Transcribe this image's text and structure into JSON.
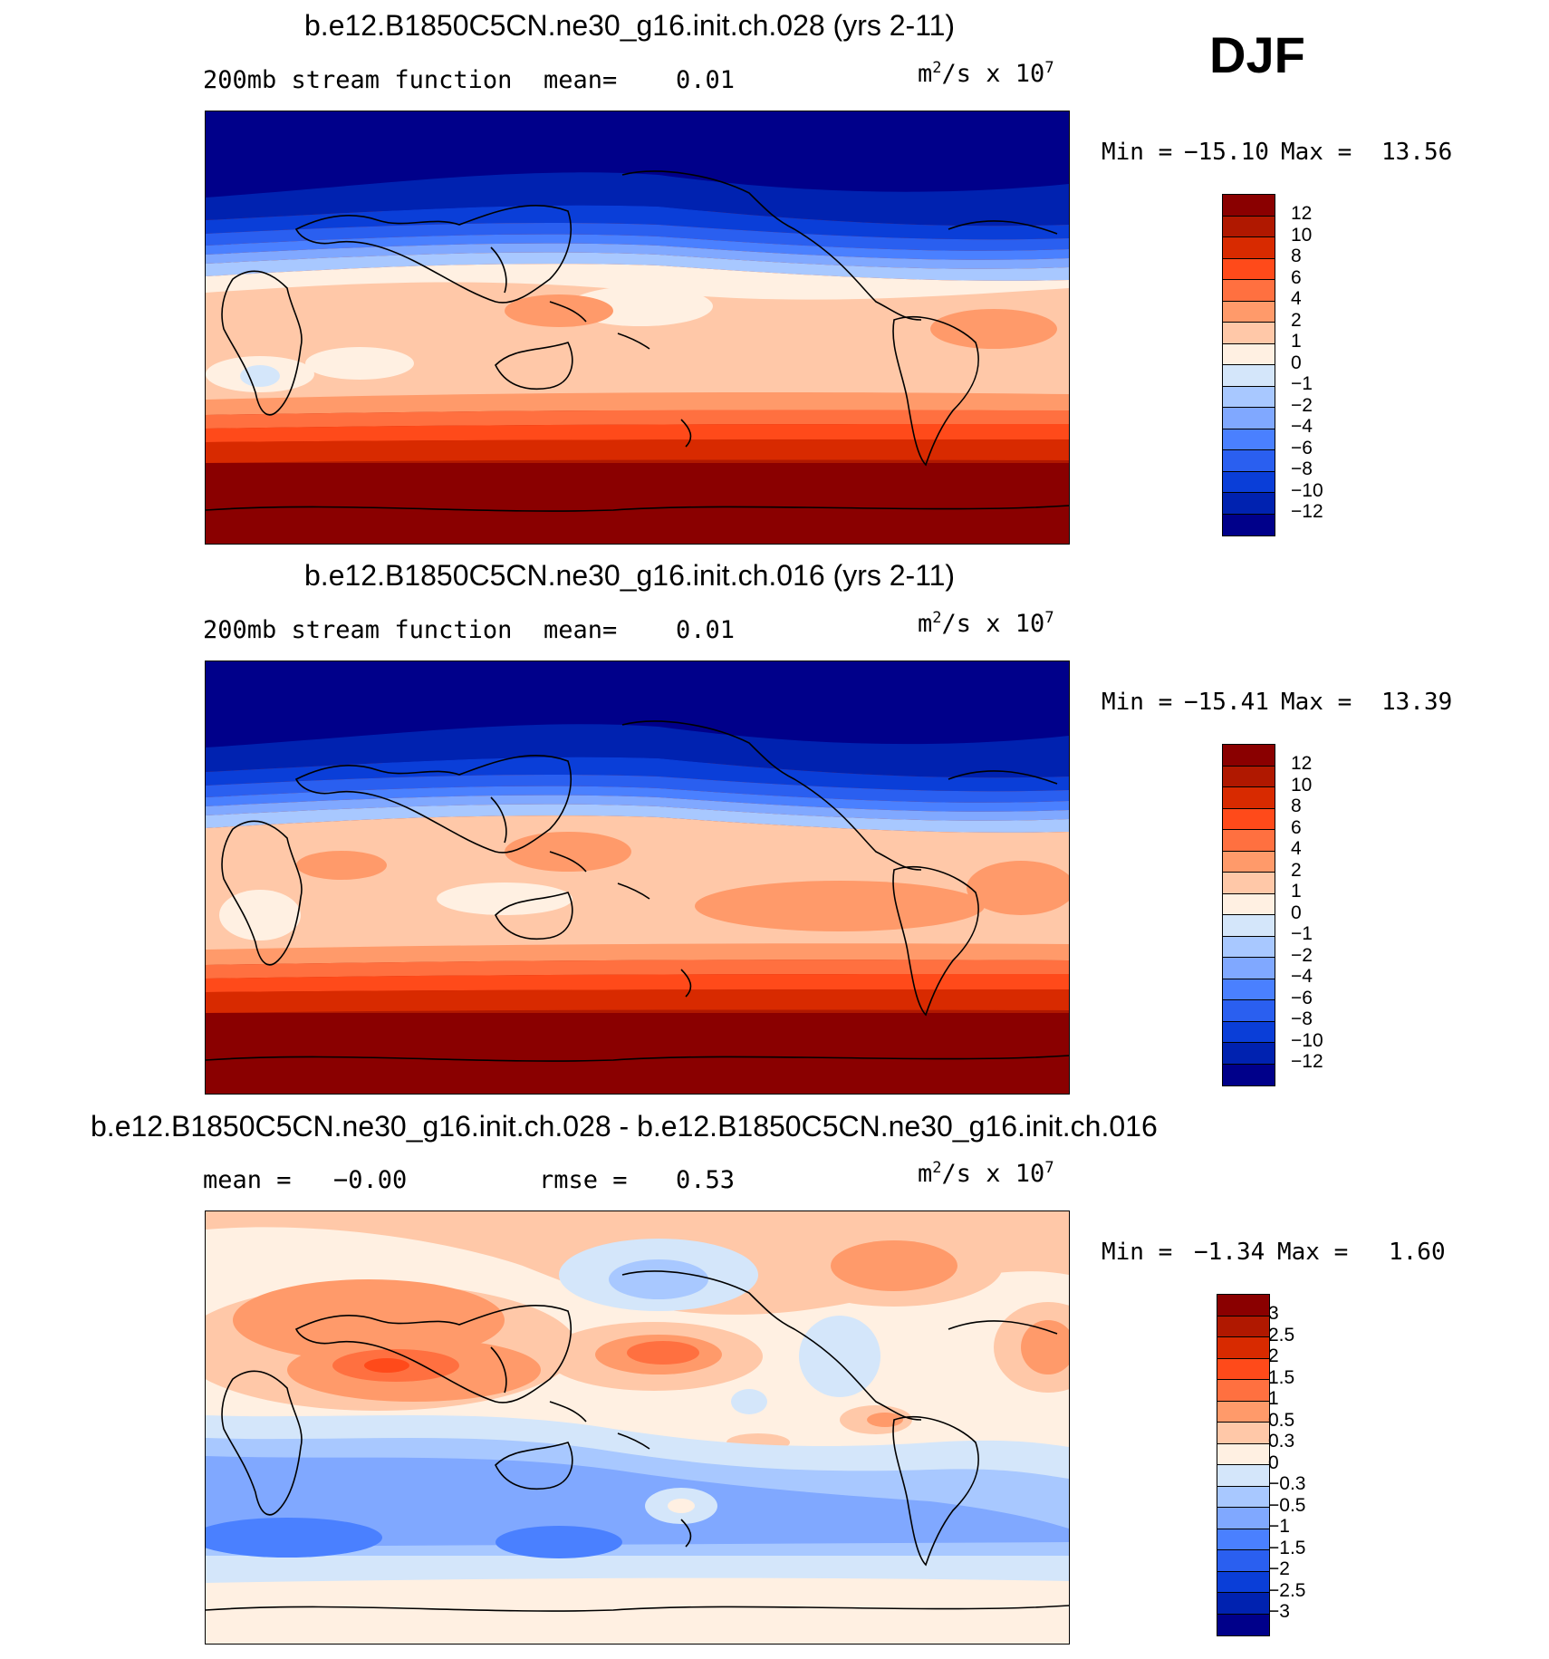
{
  "season": "DJF",
  "colors": {
    "stream": [
      "#00008a",
      "#0022b0",
      "#0a3ed8",
      "#2a5ff0",
      "#4a80ff",
      "#80a8ff",
      "#a8c8ff",
      "#d4e6fa",
      "#fff0e2",
      "#ffc8a8",
      "#ff9a6a",
      "#ff7040",
      "#ff4a1a",
      "#d82a00",
      "#b01800",
      "#8a0000"
    ],
    "diff": [
      "#00008a",
      "#0022b0",
      "#0a3ed8",
      "#2a5ff0",
      "#4a80ff",
      "#80a8ff",
      "#a8c8ff",
      "#d4e6fa",
      "#fff0e2",
      "#ffc8a8",
      "#ff9a6a",
      "#ff7040",
      "#ff4a1a",
      "#d82a00",
      "#b01800",
      "#8a0000"
    ]
  },
  "panels": [
    {
      "title": "b.e12.B1850C5CN.ne30_g16.init.ch.028 (yrs 2-11)",
      "left_label": "200mb stream function",
      "mid_label": "mean=",
      "mid_value": "0.01",
      "units_base": "m",
      "units_exp1": "2",
      "units_mid": "/s x 10",
      "units_exp2": "7",
      "min_label": "Min =",
      "min_value": "−15.10",
      "max_label": "Max =",
      "max_value": "13.56",
      "colorbar_labels": [
        "12",
        "10",
        "8",
        "6",
        "4",
        "2",
        "1",
        "0",
        "−1",
        "−2",
        "−4",
        "−6",
        "−8",
        "−10",
        "−12"
      ]
    },
    {
      "title": "b.e12.B1850C5CN.ne30_g16.init.ch.016 (yrs 2-11)",
      "left_label": "200mb stream function",
      "mid_label": "mean=",
      "mid_value": "0.01",
      "units_base": "m",
      "units_exp1": "2",
      "units_mid": "/s x 10",
      "units_exp2": "7",
      "min_label": "Min =",
      "min_value": "−15.41",
      "max_label": "Max =",
      "max_value": "13.39",
      "colorbar_labels": [
        "12",
        "10",
        "8",
        "6",
        "4",
        "2",
        "1",
        "0",
        "−1",
        "−2",
        "−4",
        "−6",
        "−8",
        "−10",
        "−12"
      ]
    },
    {
      "title": "b.e12.B1850C5CN.ne30_g16.init.ch.028 - b.e12.B1850C5CN.ne30_g16.init.ch.016",
      "left_label": "mean =",
      "left_value": "−0.00",
      "mid_label": "rmse =",
      "mid_value": "0.53",
      "units_base": "m",
      "units_exp1": "2",
      "units_mid": "/s x 10",
      "units_exp2": "7",
      "min_label": "Min =",
      "min_value": "−1.34",
      "max_label": "Max =",
      "max_value": "1.60",
      "colorbar_labels": [
        "3",
        "2.5",
        "2",
        "1.5",
        "1",
        "0.5",
        "0.3",
        "0",
        "−0.3",
        "−0.5",
        "−1",
        "−1.5",
        "−2",
        "−2.5",
        "−3"
      ]
    }
  ]
}
